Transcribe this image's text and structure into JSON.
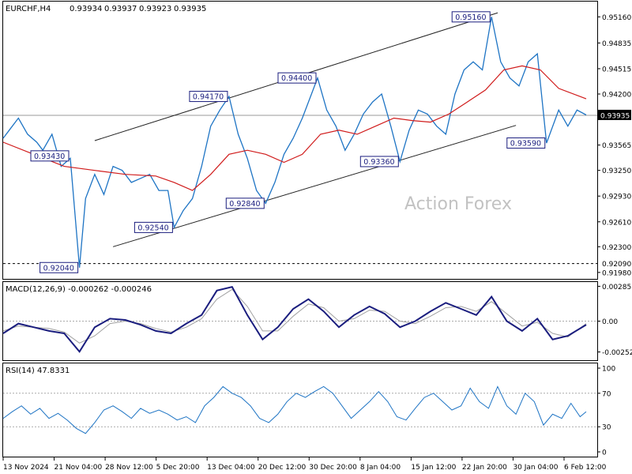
{
  "header": {
    "symbol": "EURCHF,H4",
    "open": "0.93934",
    "high": "0.93937",
    "low": "0.93923",
    "close": "0.93935"
  },
  "watermark": "Action Forex",
  "colors": {
    "price": "#1e74c4",
    "ma": "#d01b1b",
    "macd_main": "#1a1d7e",
    "macd_signal": "#a0a0a0",
    "rsi": "#1e74c4",
    "channel": "#222222",
    "label_box": "#1a1d7e",
    "grid_border": "#000000",
    "price_tag_bg": "#000000"
  },
  "chart_data": [
    {
      "type": "line",
      "panel": "price",
      "title": "EURCHF,H4",
      "x_ticks": [
        "13 Nov 2024",
        "21 Nov 04:00",
        "28 Nov 12:00",
        "5 Dec 20:00",
        "13 Dec 04:00",
        "20 Dec 12:00",
        "30 Dec 20:00",
        "8 Jan 04:00",
        "15 Jan 12:00",
        "22 Jan 20:00",
        "30 Jan 04:00",
        "6 Feb 12:00"
      ],
      "y_ticks": [
        "0.95160",
        "0.94835",
        "0.94515",
        "0.94200",
        "0.93565",
        "0.93250",
        "0.92930",
        "0.92610",
        "0.92300",
        "0.91980"
      ],
      "ylim": [
        0.919,
        0.9535
      ],
      "current_price": "0.93935",
      "support_level": "0.92090",
      "series": [
        {
          "name": "",
          "role": "price",
          "x": [
            0,
            2,
            5,
            8,
            11,
            13,
            16,
            19,
            22,
            25,
            27,
            30,
            33,
            36,
            39,
            42,
            45,
            48,
            51,
            54,
            56,
            59,
            62,
            65,
            68,
            71,
            74,
            77,
            80,
            83,
            86,
            89,
            92,
            95,
            98,
            101,
            103,
            106,
            109,
            112,
            115,
            118,
            121,
            124,
            127,
            130,
            133,
            136,
            139,
            142,
            145,
            148,
            151,
            154,
            157,
            160,
            163,
            166,
            169,
            172,
            175,
            178,
            182,
            185,
            188,
            191
          ],
          "values": [
            0.9365,
            0.9375,
            0.939,
            0.937,
            0.936,
            0.935,
            0.937,
            0.933,
            0.934,
            0.9204,
            0.929,
            0.932,
            0.9295,
            0.933,
            0.9325,
            0.931,
            0.9315,
            0.932,
            0.93,
            0.93,
            0.9254,
            0.9275,
            0.929,
            0.933,
            0.938,
            0.94,
            0.9417,
            0.937,
            0.934,
            0.93,
            0.9284,
            0.931,
            0.9345,
            0.9365,
            0.939,
            0.942,
            0.944,
            0.94,
            0.938,
            0.935,
            0.937,
            0.9395,
            0.941,
            0.942,
            0.938,
            0.9336,
            0.9375,
            0.94,
            0.9395,
            0.938,
            0.937,
            0.942,
            0.945,
            0.946,
            0.945,
            0.9516,
            0.946,
            0.944,
            0.943,
            0.946,
            0.947,
            0.9359,
            0.94,
            0.938,
            0.94,
            0.9394
          ]
        },
        {
          "name": "",
          "role": "moving_average",
          "x": [
            0,
            10,
            20,
            30,
            40,
            50,
            56,
            62,
            68,
            74,
            80,
            86,
            92,
            98,
            104,
            110,
            116,
            122,
            128,
            134,
            140,
            146,
            152,
            158,
            164,
            170,
            176,
            182,
            191
          ],
          "values": [
            0.936,
            0.9345,
            0.933,
            0.9325,
            0.932,
            0.9318,
            0.931,
            0.93,
            0.932,
            0.9345,
            0.935,
            0.9345,
            0.9335,
            0.9345,
            0.937,
            0.9375,
            0.937,
            0.938,
            0.939,
            0.9387,
            0.9385,
            0.9395,
            0.941,
            0.9425,
            0.945,
            0.9455,
            0.945,
            0.9427,
            0.9414
          ]
        }
      ],
      "annotations": [
        {
          "label": "0.93430",
          "x": 22,
          "y": 0.9343
        },
        {
          "label": "0.92040",
          "x": 25,
          "y": 0.9204
        },
        {
          "label": "0.92540",
          "x": 56,
          "y": 0.9254
        },
        {
          "label": "0.94170",
          "x": 74,
          "y": 0.9417
        },
        {
          "label": "0.92840",
          "x": 86,
          "y": 0.9284
        },
        {
          "label": "0.94400",
          "x": 103,
          "y": 0.944
        },
        {
          "label": "0.93360",
          "x": 130,
          "y": 0.9336
        },
        {
          "label": "0.95160",
          "x": 160,
          "y": 0.9516
        },
        {
          "label": "0.93590",
          "x": 178,
          "y": 0.9359
        }
      ],
      "channel_lines": [
        {
          "x1": 30,
          "y1": 0.9362,
          "x2": 162,
          "y2": 0.9521
        },
        {
          "x1": 36,
          "y1": 0.923,
          "x2": 168,
          "y2": 0.9381
        }
      ]
    },
    {
      "type": "line",
      "panel": "macd",
      "title": "MACD(12,26,9) -0.000262 -0.000246",
      "y_ticks": [
        "0.00285",
        "0.00",
        "-0.002521"
      ],
      "ylim": [
        -0.0032,
        0.0032
      ],
      "series": [
        {
          "name": "",
          "role": "macd_main",
          "x": [
            0,
            5,
            10,
            15,
            20,
            25,
            30,
            35,
            40,
            45,
            50,
            55,
            60,
            65,
            70,
            75,
            80,
            85,
            90,
            95,
            100,
            105,
            110,
            115,
            120,
            125,
            130,
            135,
            140,
            145,
            150,
            155,
            160,
            165,
            170,
            175,
            180,
            185,
            191
          ],
          "values": [
            -0.001,
            -0.0002,
            -0.0005,
            -0.0008,
            -0.001,
            -0.0025,
            -0.0005,
            0.0002,
            0.0001,
            -0.0003,
            -0.0008,
            -0.001,
            -0.0002,
            0.0005,
            0.0025,
            0.0028,
            0.0005,
            -0.0015,
            -0.0005,
            0.001,
            0.0018,
            0.0008,
            -0.0005,
            0.0005,
            0.0012,
            0.0006,
            -0.0005,
            0.0,
            0.0008,
            0.0015,
            0.001,
            0.0005,
            0.002,
            0.0,
            -0.0008,
            0.0002,
            -0.0015,
            -0.0012,
            -0.0003
          ]
        },
        {
          "name": "",
          "role": "macd_signal",
          "x": [
            0,
            5,
            10,
            15,
            20,
            25,
            30,
            35,
            40,
            45,
            50,
            55,
            60,
            65,
            70,
            75,
            80,
            85,
            90,
            95,
            100,
            105,
            110,
            115,
            120,
            125,
            130,
            135,
            140,
            145,
            150,
            155,
            160,
            165,
            170,
            175,
            180,
            185,
            191
          ],
          "values": [
            -0.0008,
            -0.0004,
            -0.0005,
            -0.0006,
            -0.0009,
            -0.0018,
            -0.0012,
            -0.0002,
            0.0,
            -0.0002,
            -0.0006,
            -0.0009,
            -0.0005,
            0.0002,
            0.0018,
            0.0026,
            0.0012,
            -0.0008,
            -0.0008,
            0.0004,
            0.0014,
            0.0011,
            0.0,
            0.0002,
            0.0009,
            0.0008,
            0.0,
            -0.0002,
            0.0004,
            0.0011,
            0.0012,
            0.0008,
            0.0016,
            0.0006,
            -0.0004,
            -0.0001,
            -0.001,
            -0.0013,
            -0.0002
          ]
        }
      ]
    },
    {
      "type": "line",
      "panel": "rsi",
      "title": "RSI(14) 47.8331",
      "y_ticks": [
        "100",
        "70",
        "30",
        "0"
      ],
      "ylim": [
        0,
        100
      ],
      "series": [
        {
          "name": "",
          "role": "rsi",
          "x": [
            0,
            3,
            6,
            9,
            12,
            15,
            18,
            21,
            24,
            27,
            30,
            33,
            36,
            39,
            42,
            45,
            48,
            51,
            54,
            57,
            60,
            63,
            66,
            69,
            72,
            75,
            78,
            81,
            84,
            87,
            90,
            93,
            96,
            99,
            102,
            105,
            108,
            111,
            114,
            117,
            120,
            123,
            126,
            129,
            132,
            135,
            138,
            141,
            144,
            147,
            150,
            153,
            156,
            159,
            162,
            165,
            168,
            171,
            174,
            177,
            180,
            183,
            186,
            189,
            191
          ],
          "values": [
            40,
            48,
            55,
            45,
            52,
            40,
            46,
            38,
            28,
            22,
            35,
            50,
            55,
            48,
            40,
            52,
            46,
            50,
            45,
            38,
            42,
            35,
            55,
            65,
            78,
            70,
            65,
            55,
            40,
            35,
            45,
            60,
            70,
            65,
            72,
            78,
            70,
            55,
            40,
            50,
            60,
            72,
            60,
            42,
            38,
            52,
            65,
            70,
            60,
            50,
            55,
            76,
            60,
            52,
            78,
            55,
            45,
            70,
            60,
            32,
            45,
            40,
            58,
            42,
            48
          ]
        }
      ]
    }
  ]
}
